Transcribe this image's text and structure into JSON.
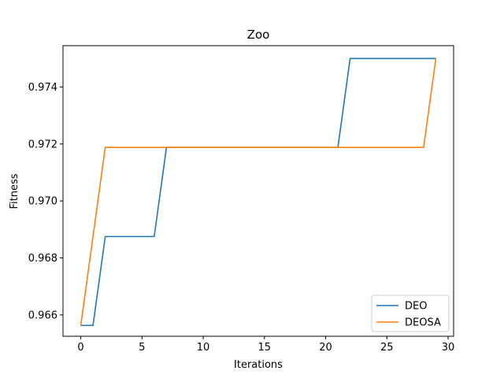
{
  "chart_data": {
    "type": "line",
    "title": "Zoo",
    "xlabel": "Iterations",
    "ylabel": "Fitness",
    "xlim": [
      -1.45,
      30.45
    ],
    "ylim": [
      0.96525,
      0.97545
    ],
    "xticks": [
      0,
      5,
      10,
      15,
      20,
      25,
      30
    ],
    "yticks": [
      0.966,
      0.968,
      0.97,
      0.972,
      0.974
    ],
    "xtick_labels": [
      "0",
      "5",
      "10",
      "15",
      "20",
      "25",
      "30"
    ],
    "ytick_labels": [
      "0.966",
      "0.968",
      "0.970",
      "0.972",
      "0.974"
    ],
    "grid": false,
    "legend_position": "lower-right",
    "x": [
      0,
      1,
      2,
      3,
      4,
      5,
      6,
      7,
      8,
      9,
      10,
      11,
      12,
      13,
      14,
      15,
      16,
      17,
      18,
      19,
      20,
      21,
      22,
      23,
      24,
      25,
      26,
      27,
      28,
      29
    ],
    "series": [
      {
        "name": "DEO",
        "color": "#1f77b4",
        "values": [
          0.96563,
          0.96563,
          0.96875,
          0.96875,
          0.96875,
          0.96875,
          0.96875,
          0.97188,
          0.97188,
          0.97188,
          0.97188,
          0.97188,
          0.97188,
          0.97188,
          0.97188,
          0.97188,
          0.97188,
          0.97188,
          0.97188,
          0.97188,
          0.97188,
          0.97188,
          0.975,
          0.975,
          0.975,
          0.975,
          0.975,
          0.975,
          0.975,
          0.975
        ]
      },
      {
        "name": "DEOSA",
        "color": "#ff7f0e",
        "values": [
          0.96563,
          0.96875,
          0.97188,
          0.97188,
          0.97188,
          0.97188,
          0.97188,
          0.97188,
          0.97188,
          0.97188,
          0.97188,
          0.97188,
          0.97188,
          0.97188,
          0.97188,
          0.97188,
          0.97188,
          0.97188,
          0.97188,
          0.97188,
          0.97188,
          0.97188,
          0.97188,
          0.97188,
          0.97188,
          0.97188,
          0.97188,
          0.97188,
          0.97188,
          0.975
        ]
      }
    ]
  }
}
